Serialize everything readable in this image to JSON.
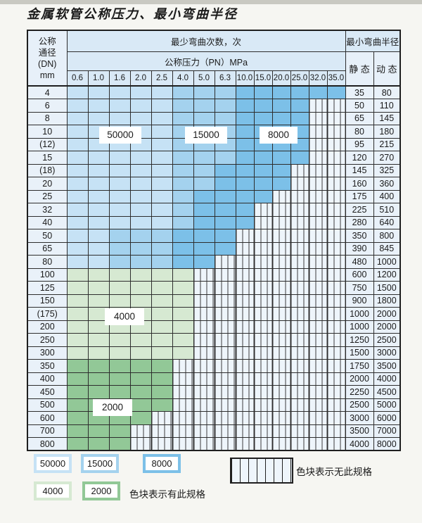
{
  "title": "金属软管公称压力、最小弯曲半径",
  "table": {
    "dn_header_lines": [
      "公称",
      "通径",
      "(DN)",
      "mm"
    ],
    "bend_cycles_label": "最少弯曲次数，次",
    "pressure_label": "公称压力（PN）MPa",
    "pressure_columns": [
      "0.6",
      "1.0",
      "1.6",
      "2.0",
      "2.5",
      "4.0",
      "5.0",
      "6.3",
      "10.0",
      "15.0",
      "20.0",
      "25.0",
      "32.0",
      "35.0"
    ],
    "radius_label": "最小弯曲半径",
    "static_label": "静 态",
    "dynamic_label": "动 态"
  },
  "zone_labels": {
    "z50000": "50000",
    "z15000": "15000",
    "z8000": "8000",
    "z4000": "4000",
    "z2000": "2000"
  },
  "legend": {
    "c50000": "50000",
    "c15000": "15000",
    "c8000": "8000",
    "c4000": "4000",
    "c2000": "2000",
    "has_spec": "色块表示有此规格",
    "no_spec": "色块表示无此规格"
  },
  "colors": {
    "cycles_50000": "#c6e2f5",
    "cycles_15000": "#a4d2ee",
    "cycles_8000": "#7cc0e8",
    "cycles_4000": "#d6e9d2",
    "cycles_2000": "#92c897",
    "no_spec_cell": "#eef5fb",
    "header_fill": "#d9e9f6",
    "label_fill": "#e9f1f9",
    "grid_line": "#2d2d2d"
  },
  "chart_data": {
    "type": "table",
    "title": "金属软管公称压力、最小弯曲半径",
    "row_axis": "公称通径(DN) mm",
    "col_axis": "公称压力（PN）MPa",
    "value_meaning_cells": "最少弯曲次数，次 (cell color zone); none = 无此规格",
    "extra_columns": [
      "最小弯曲半径 静态",
      "最小弯曲半径 动态"
    ],
    "pressure_columns_mpa": [
      0.6,
      1.0,
      1.6,
      2.0,
      2.5,
      4.0,
      5.0,
      6.3,
      10.0,
      15.0,
      20.0,
      25.0,
      32.0,
      35.0
    ],
    "bend_cycle_levels": [
      50000,
      15000,
      8000,
      4000,
      2000
    ],
    "rows": [
      {
        "dn": "4",
        "zones": [
          [
            "50000",
            5
          ],
          [
            "15000",
            3
          ],
          [
            "8000",
            6
          ]
        ],
        "static": "35",
        "dynamic": "80"
      },
      {
        "dn": "6",
        "zones": [
          [
            "50000",
            5
          ],
          [
            "15000",
            3
          ],
          [
            "8000",
            4
          ],
          [
            "none",
            2
          ]
        ],
        "static": "50",
        "dynamic": "110"
      },
      {
        "dn": "8",
        "zones": [
          [
            "50000",
            5
          ],
          [
            "15000",
            3
          ],
          [
            "8000",
            4
          ],
          [
            "none",
            2
          ]
        ],
        "static": "65",
        "dynamic": "145"
      },
      {
        "dn": "10",
        "zones": [
          [
            "50000",
            5
          ],
          [
            "15000",
            3
          ],
          [
            "8000",
            4
          ],
          [
            "none",
            2
          ]
        ],
        "static": "80",
        "dynamic": "180"
      },
      {
        "dn": "(12)",
        "zones": [
          [
            "50000",
            5
          ],
          [
            "15000",
            3
          ],
          [
            "8000",
            4
          ],
          [
            "none",
            2
          ]
        ],
        "static": "95",
        "dynamic": "215"
      },
      {
        "dn": "15",
        "zones": [
          [
            "50000",
            5
          ],
          [
            "15000",
            3
          ],
          [
            "8000",
            4
          ],
          [
            "none",
            2
          ]
        ],
        "static": "120",
        "dynamic": "270"
      },
      {
        "dn": "(18)",
        "zones": [
          [
            "50000",
            5
          ],
          [
            "15000",
            2
          ],
          [
            "8000",
            4
          ],
          [
            "none",
            3
          ]
        ],
        "static": "145",
        "dynamic": "325"
      },
      {
        "dn": "20",
        "zones": [
          [
            "50000",
            5
          ],
          [
            "15000",
            2
          ],
          [
            "8000",
            4
          ],
          [
            "none",
            3
          ]
        ],
        "static": "160",
        "dynamic": "360"
      },
      {
        "dn": "25",
        "zones": [
          [
            "50000",
            5
          ],
          [
            "15000",
            1
          ],
          [
            "8000",
            4
          ],
          [
            "none",
            4
          ]
        ],
        "static": "175",
        "dynamic": "400"
      },
      {
        "dn": "32",
        "zones": [
          [
            "50000",
            5
          ],
          [
            "15000",
            1
          ],
          [
            "8000",
            3
          ],
          [
            "none",
            5
          ]
        ],
        "static": "225",
        "dynamic": "510"
      },
      {
        "dn": "40",
        "zones": [
          [
            "50000",
            5
          ],
          [
            "15000",
            1
          ],
          [
            "8000",
            3
          ],
          [
            "none",
            5
          ]
        ],
        "static": "280",
        "dynamic": "640"
      },
      {
        "dn": "50",
        "zones": [
          [
            "50000",
            2
          ],
          [
            "15000",
            3
          ],
          [
            "8000",
            3
          ],
          [
            "none",
            6
          ]
        ],
        "static": "350",
        "dynamic": "800"
      },
      {
        "dn": "65",
        "zones": [
          [
            "50000",
            2
          ],
          [
            "15000",
            3
          ],
          [
            "8000",
            3
          ],
          [
            "none",
            6
          ]
        ],
        "static": "390",
        "dynamic": "845"
      },
      {
        "dn": "80",
        "zones": [
          [
            "50000",
            2
          ],
          [
            "15000",
            3
          ],
          [
            "8000",
            2
          ],
          [
            "none",
            7
          ]
        ],
        "static": "480",
        "dynamic": "1000"
      },
      {
        "dn": "100",
        "zones": [
          [
            "4000",
            6
          ],
          [
            "none",
            8
          ]
        ],
        "static": "600",
        "dynamic": "1200"
      },
      {
        "dn": "125",
        "zones": [
          [
            "4000",
            6
          ],
          [
            "none",
            8
          ]
        ],
        "static": "750",
        "dynamic": "1500"
      },
      {
        "dn": "150",
        "zones": [
          [
            "4000",
            6
          ],
          [
            "none",
            8
          ]
        ],
        "static": "900",
        "dynamic": "1800"
      },
      {
        "dn": "(175)",
        "zones": [
          [
            "4000",
            6
          ],
          [
            "none",
            8
          ]
        ],
        "static": "1000",
        "dynamic": "2000"
      },
      {
        "dn": "200",
        "zones": [
          [
            "4000",
            6
          ],
          [
            "none",
            8
          ]
        ],
        "static": "1000",
        "dynamic": "2000"
      },
      {
        "dn": "250",
        "zones": [
          [
            "4000",
            6
          ],
          [
            "none",
            8
          ]
        ],
        "static": "1250",
        "dynamic": "2500"
      },
      {
        "dn": "300",
        "zones": [
          [
            "4000",
            6
          ],
          [
            "none",
            8
          ]
        ],
        "static": "1500",
        "dynamic": "3000"
      },
      {
        "dn": "350",
        "zones": [
          [
            "2000",
            5
          ],
          [
            "none",
            9
          ]
        ],
        "static": "1750",
        "dynamic": "3500"
      },
      {
        "dn": "400",
        "zones": [
          [
            "2000",
            5
          ],
          [
            "none",
            9
          ]
        ],
        "static": "2000",
        "dynamic": "4000"
      },
      {
        "dn": "450",
        "zones": [
          [
            "2000",
            5
          ],
          [
            "none",
            9
          ]
        ],
        "static": "2250",
        "dynamic": "4500"
      },
      {
        "dn": "500",
        "zones": [
          [
            "2000",
            5
          ],
          [
            "none",
            9
          ]
        ],
        "static": "2500",
        "dynamic": "5000"
      },
      {
        "dn": "600",
        "zones": [
          [
            "2000",
            4
          ],
          [
            "none",
            10
          ]
        ],
        "static": "3000",
        "dynamic": "6000"
      },
      {
        "dn": "700",
        "zones": [
          [
            "2000",
            3
          ],
          [
            "none",
            11
          ]
        ],
        "static": "3500",
        "dynamic": "7000"
      },
      {
        "dn": "800",
        "zones": [
          [
            "2000",
            3
          ],
          [
            "none",
            11
          ]
        ],
        "static": "4000",
        "dynamic": "8000"
      }
    ]
  }
}
